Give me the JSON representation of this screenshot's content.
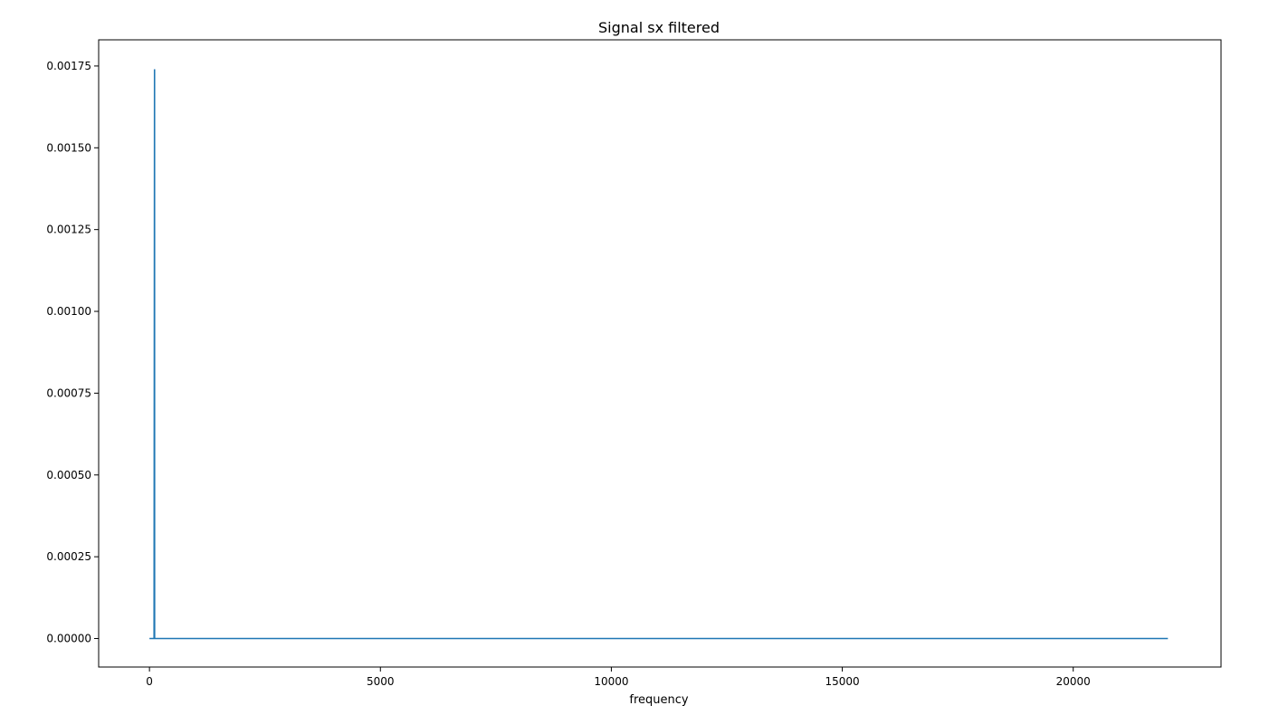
{
  "chart_data": {
    "type": "line",
    "title": "Signal sx filtered",
    "xlabel": "frequency",
    "ylabel": "",
    "xlim": [
      -1100,
      23200
    ],
    "ylim": [
      -8.71e-05,
      0.00183
    ],
    "grid": false,
    "xticks": [
      0,
      5000,
      10000,
      15000,
      20000
    ],
    "xtick_labels": [
      "0",
      "5000",
      "10000",
      "15000",
      "20000"
    ],
    "yticks": [
      0,
      0.00025,
      0.0005,
      0.00075,
      0.001,
      0.00125,
      0.0015,
      0.00175
    ],
    "ytick_labels": [
      "0.00000",
      "0.00025",
      "0.00050",
      "0.00075",
      "0.00100",
      "0.00125",
      "0.00150",
      "0.00175"
    ],
    "series": [
      {
        "color": "#1f77b4",
        "x": [
          0,
          100,
          110,
          111,
          120,
          22050
        ],
        "y": [
          0,
          0,
          0.00174,
          0,
          0,
          0
        ]
      }
    ]
  }
}
